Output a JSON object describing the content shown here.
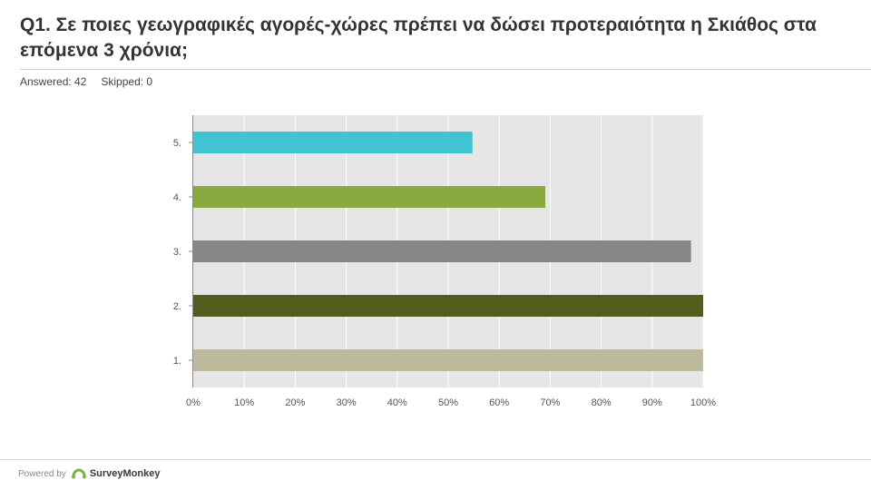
{
  "header": {
    "question": "Q1. Σε ποιες γεωγραφικές αγορές-χώρες πρέπει να δώσει προτεραιότητα η Σκιάθος στα επόμενα 3 χρόνια;",
    "answered_label": "Answered: 42",
    "skipped_label": "Skipped: 0"
  },
  "chart_data": {
    "type": "bar",
    "orientation": "horizontal",
    "categories": [
      "5.",
      "4.",
      "3.",
      "2.",
      "1."
    ],
    "values": [
      54.76,
      69.05,
      97.62,
      100,
      100
    ],
    "colors": [
      "#41c4d1",
      "#88aa40",
      "#868686",
      "#535c1e",
      "#bdb99b"
    ],
    "x_ticks": [
      "0%",
      "10%",
      "20%",
      "30%",
      "40%",
      "50%",
      "60%",
      "70%",
      "80%",
      "90%",
      "100%"
    ],
    "xlim": [
      0,
      100
    ],
    "grid": true,
    "title": "",
    "xlabel": "",
    "ylabel": ""
  },
  "footer": {
    "powered_by": "Powered by",
    "brand": "SurveyMonkey",
    "brand_icon": "surveymonkey-logo-icon"
  }
}
